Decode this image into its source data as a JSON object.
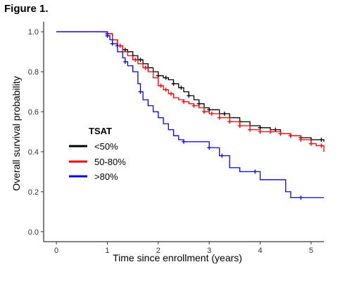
{
  "figure_label": "Figure 1.",
  "chart_data": {
    "type": "line",
    "subtype": "kaplan-meier",
    "title": "",
    "xlabel": "Time since enrollment (years)",
    "ylabel": "Overall survival probability",
    "xlim": [
      -0.25,
      5.25
    ],
    "ylim": [
      -0.05,
      1.05
    ],
    "xticks": [
      0,
      1,
      2,
      3,
      4,
      5
    ],
    "xtick_labels": [
      "0",
      "1",
      "2",
      "3",
      "4",
      "5"
    ],
    "yticks": [
      0.0,
      0.2,
      0.4,
      0.6,
      0.8,
      1.0
    ],
    "ytick_labels": [
      "0.0",
      "0.2",
      "0.4",
      "0.6",
      "0.8",
      "1.0"
    ],
    "grid": false,
    "legend": {
      "title": "TSAT",
      "placement": "lower-left-inside",
      "labels": [
        "<50%",
        "50-80%",
        ">80%"
      ]
    },
    "series": [
      {
        "name": "<50%",
        "color": "#000000",
        "x": [
          0,
          0.95,
          1.0,
          1.1,
          1.2,
          1.3,
          1.4,
          1.5,
          1.6,
          1.7,
          1.8,
          1.9,
          2.0,
          2.1,
          2.2,
          2.3,
          2.4,
          2.5,
          2.6,
          2.7,
          2.8,
          2.9,
          3.0,
          3.2,
          3.4,
          3.6,
          3.8,
          4.0,
          4.2,
          4.4,
          4.6,
          4.8,
          5.0,
          5.25
        ],
        "y": [
          1.0,
          1.0,
          0.99,
          0.96,
          0.93,
          0.91,
          0.9,
          0.88,
          0.86,
          0.84,
          0.82,
          0.8,
          0.78,
          0.77,
          0.76,
          0.74,
          0.72,
          0.7,
          0.68,
          0.66,
          0.64,
          0.62,
          0.61,
          0.59,
          0.57,
          0.55,
          0.53,
          0.52,
          0.51,
          0.49,
          0.48,
          0.47,
          0.46,
          0.45
        ],
        "censor_x": [
          1.0,
          1.2,
          1.35,
          1.5,
          1.65,
          1.8,
          2.0,
          2.15,
          2.3,
          2.45,
          2.6,
          2.8,
          3.0,
          3.3,
          3.6,
          4.0,
          4.3,
          4.6,
          4.8,
          5.0,
          5.2
        ]
      },
      {
        "name": "50-80%",
        "color": "#ff0000",
        "x": [
          0,
          0.95,
          1.0,
          1.1,
          1.2,
          1.3,
          1.4,
          1.5,
          1.6,
          1.7,
          1.8,
          1.9,
          2.0,
          2.1,
          2.2,
          2.3,
          2.4,
          2.5,
          2.6,
          2.7,
          2.8,
          2.9,
          3.0,
          3.2,
          3.4,
          3.6,
          3.8,
          4.0,
          4.2,
          4.4,
          4.6,
          4.8,
          5.0,
          5.1,
          5.25
        ],
        "y": [
          1.0,
          1.0,
          0.99,
          0.96,
          0.93,
          0.9,
          0.88,
          0.86,
          0.84,
          0.82,
          0.8,
          0.77,
          0.73,
          0.71,
          0.69,
          0.67,
          0.66,
          0.65,
          0.64,
          0.63,
          0.62,
          0.6,
          0.59,
          0.57,
          0.55,
          0.53,
          0.51,
          0.5,
          0.5,
          0.49,
          0.48,
          0.46,
          0.44,
          0.43,
          0.4
        ],
        "censor_x": [
          1.0,
          1.25,
          1.55,
          1.75,
          2.05,
          2.15,
          2.25,
          2.5,
          2.7,
          2.9,
          3.05,
          3.2,
          3.4,
          3.6,
          3.8,
          4.0,
          4.2,
          4.4,
          4.6,
          4.8,
          5.0,
          5.2
        ]
      },
      {
        "name": ">80%",
        "color": "#0000ff",
        "x": [
          0,
          0.95,
          1.0,
          1.05,
          1.1,
          1.2,
          1.3,
          1.35,
          1.4,
          1.5,
          1.6,
          1.65,
          1.7,
          1.8,
          1.9,
          2.0,
          2.1,
          2.2,
          2.3,
          2.4,
          2.5,
          3.0,
          3.2,
          3.4,
          3.6,
          4.0,
          4.5,
          4.6,
          5.25
        ],
        "y": [
          1.0,
          1.0,
          0.98,
          0.96,
          0.94,
          0.9,
          0.87,
          0.85,
          0.83,
          0.8,
          0.74,
          0.7,
          0.66,
          0.63,
          0.6,
          0.57,
          0.54,
          0.51,
          0.48,
          0.46,
          0.45,
          0.42,
          0.38,
          0.32,
          0.3,
          0.26,
          0.2,
          0.17,
          0.17
        ],
        "censor_x": [
          1.0,
          1.1,
          1.35,
          1.65,
          2.5,
          3.0,
          3.25,
          3.9,
          4.8
        ]
      }
    ]
  }
}
